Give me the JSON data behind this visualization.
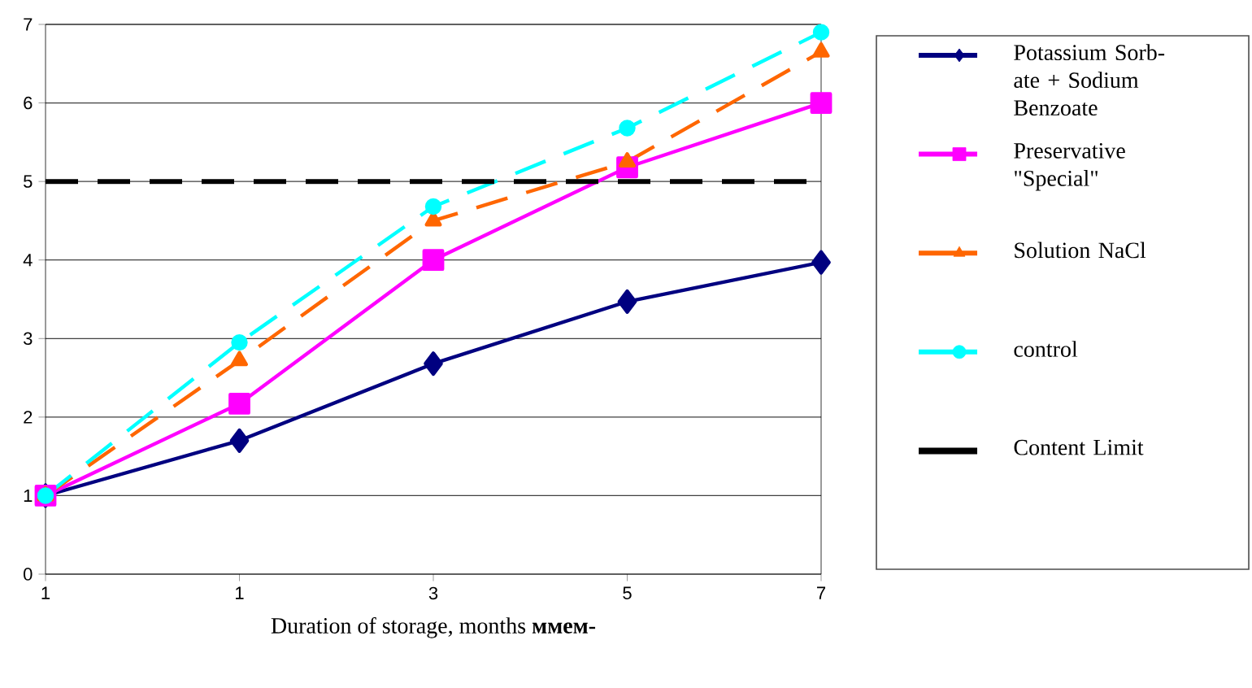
{
  "chart_data": {
    "type": "line",
    "xlabel": "Duration of storage, months **ммем-**",
    "categories": [
      "1",
      "1",
      "3",
      "5",
      "7"
    ],
    "ylim": [
      0,
      7
    ],
    "yticks": [
      0,
      1,
      2,
      3,
      4,
      5,
      6,
      7
    ],
    "grid": "y",
    "legend": "right",
    "series": [
      {
        "name": "Potassium Sorb-ate + Sodium Benzoate",
        "color": "#000080",
        "marker": "diamond",
        "line_style": "solid",
        "values": [
          1,
          1.7,
          2.68,
          3.47,
          3.97
        ]
      },
      {
        "name": "Preservative \"Special\"",
        "color": "#ff00ff",
        "marker": "square",
        "line_style": "solid",
        "values": [
          1,
          2.17,
          4,
          5.18,
          6
        ]
      },
      {
        "name": "Solution NaCl",
        "color": "#ff6600",
        "marker": "triangle",
        "line_style": "dashed",
        "values": [
          1,
          2.72,
          4.5,
          5.25,
          6.65
        ]
      },
      {
        "name": "control",
        "color": "#00ffff",
        "marker": "circle",
        "line_style": "dashed",
        "values": [
          1,
          2.95,
          4.68,
          5.68,
          6.9
        ]
      },
      {
        "name": "Content Limit",
        "color": "#000000",
        "marker": "none",
        "line_style": "dashed",
        "values": [
          5,
          5,
          5,
          5,
          5
        ]
      }
    ]
  }
}
